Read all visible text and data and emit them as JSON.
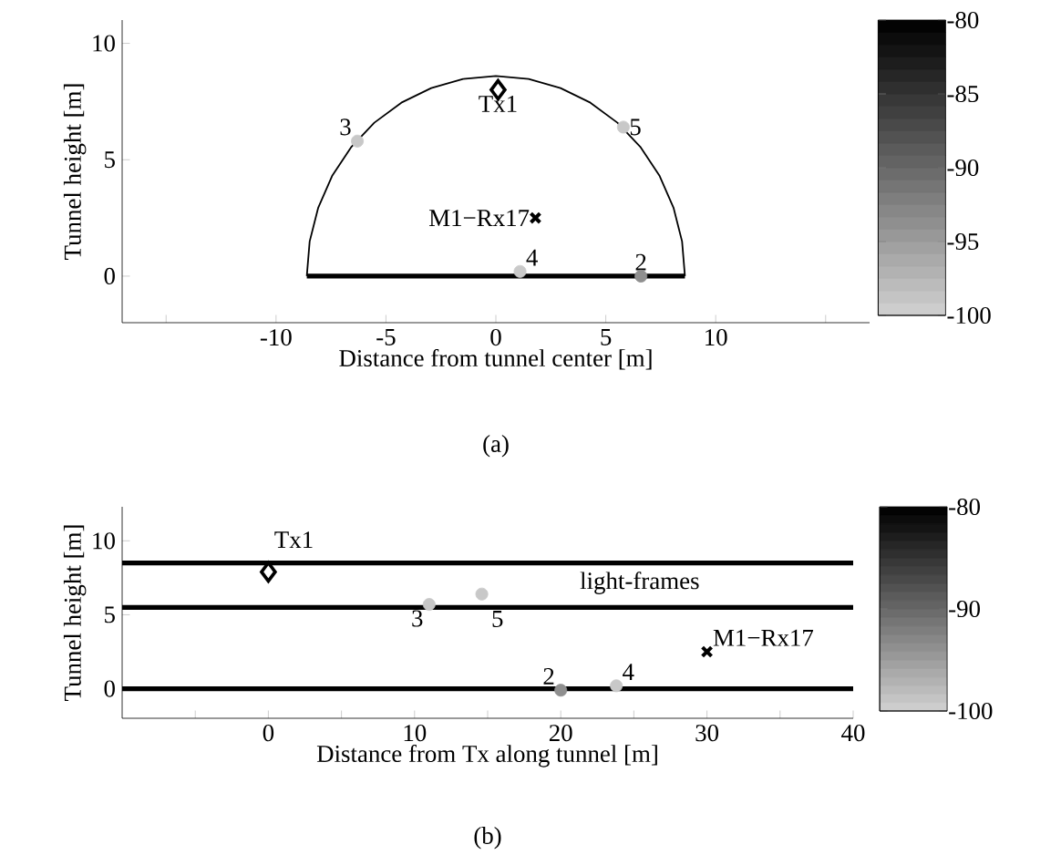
{
  "chart_data": [
    {
      "type": "scatter",
      "title": "(a)",
      "xlabel": "Distance from tunnel center [m]",
      "ylabel": "Tunnel height [m]",
      "xlim": [
        -17,
        17
      ],
      "ylim": [
        -2,
        11
      ],
      "xticks": [
        {
          "value": -15,
          "label": null
        },
        -10,
        -5,
        0,
        5,
        10,
        {
          "value": 15,
          "label": null
        }
      ],
      "yticks": [
        0,
        5,
        10
      ],
      "clim": [
        -100,
        -80
      ],
      "cticks": [
        -100,
        -95,
        -90,
        -85,
        -80
      ],
      "series": [
        {
          "type": "line",
          "color": "#000000",
          "marker": "none",
          "x": [
            -8.6,
            -8.47,
            -8.08,
            -7.45,
            -6.59,
            -5.53,
            -4.3,
            -2.94,
            -1.49,
            0,
            1.49,
            2.94,
            4.3,
            5.53,
            6.59,
            7.45,
            8.08,
            8.47,
            8.6
          ],
          "values": [
            0,
            1.49,
            2.94,
            4.3,
            5.53,
            6.59,
            7.45,
            8.08,
            8.47,
            8.6,
            8.47,
            8.08,
            7.45,
            6.59,
            5.53,
            4.3,
            2.94,
            1.49,
            0
          ]
        },
        {
          "type": "line",
          "color": "#000000",
          "marker": "none",
          "x": [
            -8.6,
            8.6
          ],
          "values": [
            0,
            0
          ]
        },
        {
          "marker": "circle",
          "x": [
            -6.3,
            5.8,
            1.1,
            6.6
          ],
          "values": [
            5.8,
            6.4,
            0.2,
            0
          ],
          "colors": [
            "#c8c8c8",
            "#c8c8c8",
            "#cacaca",
            "#8f8f8f"
          ]
        },
        {
          "marker": "diamond",
          "color": "#000000",
          "x": [
            0.1
          ],
          "values": [
            8
          ]
        },
        {
          "marker": "cross",
          "color": "#000000",
          "x": [
            1.8
          ],
          "values": [
            2.5
          ]
        }
      ],
      "annotations": [
        {
          "text": "3",
          "x": -6.3,
          "y": 5.8
        },
        {
          "text": "5",
          "x": 5.8,
          "y": 6.4
        },
        {
          "text": "4",
          "x": 1.1,
          "y": 0.2
        },
        {
          "text": "2",
          "x": 6.6,
          "y": 0
        },
        {
          "text": "Tx1",
          "x": 0.1,
          "y": 8
        },
        {
          "text": "M1−Rx17",
          "x": 1.8,
          "y": 2.5
        }
      ]
    },
    {
      "type": "scatter",
      "title": "(b)",
      "xlabel": "Distance from Tx along tunnel [m]",
      "ylabel": "Tunnel height [m]",
      "xlim": [
        -10,
        40
      ],
      "ylim": [
        -2,
        12.3
      ],
      "xticks": [
        {
          "value": -5,
          "label": null
        },
        0,
        {
          "value": 5,
          "label": null
        },
        10,
        {
          "value": 15,
          "label": null
        },
        20,
        {
          "value": 25,
          "label": null
        },
        30,
        {
          "value": 35,
          "label": null
        },
        40
      ],
      "yticks": [
        0,
        5,
        10
      ],
      "clim": [
        -100,
        -80
      ],
      "cticks": [
        -100,
        -90,
        -80
      ],
      "ref_lines": [
        {
          "axis": "y",
          "value": 8.5,
          "color": "#000000"
        },
        {
          "axis": "y",
          "value": 5.5,
          "color": "#000000"
        },
        {
          "axis": "y",
          "value": 0,
          "color": "#000000"
        }
      ],
      "series": [
        {
          "marker": "circle",
          "x": [
            11,
            14.6,
            20,
            23.8
          ],
          "values": [
            5.7,
            6.4,
            -0.1,
            0.2
          ],
          "colors": [
            "#c6c6c6",
            "#c8c8c8",
            "#8f8f8f",
            "#c8c8c8"
          ]
        },
        {
          "marker": "diamond",
          "color": "#000000",
          "x": [
            0
          ],
          "values": [
            7.9
          ]
        },
        {
          "marker": "cross",
          "color": "#000000",
          "x": [
            30
          ],
          "values": [
            2.5
          ]
        }
      ],
      "annotations": [
        {
          "text": "Tx1",
          "x": 0,
          "y": 7.9
        },
        {
          "text": "3",
          "x": 11,
          "y": 5.7
        },
        {
          "text": "5",
          "x": 14.6,
          "y": 6.4
        },
        {
          "text": "2",
          "x": 20,
          "y": -0.1
        },
        {
          "text": "4",
          "x": 23.8,
          "y": 0.2
        },
        {
          "text": "M1−Rx17",
          "x": 30,
          "y": 2.5
        },
        "light-frames"
      ]
    }
  ]
}
